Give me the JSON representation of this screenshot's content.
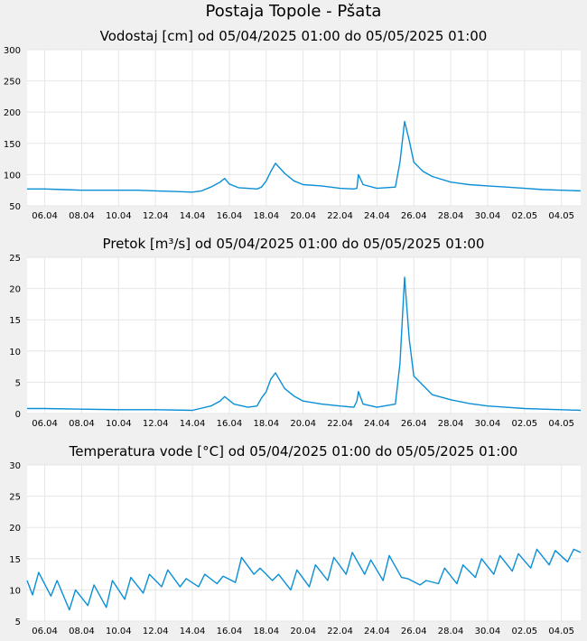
{
  "page": {
    "title": "Postaja Topole - Pšata",
    "line_color": "#0a8fd6",
    "grid_color": "#e6e6e6"
  },
  "chart_data": [
    {
      "type": "line",
      "title": "Vodostaj [cm] od 05/04/2025 01:00 do 05/05/2025 01:00",
      "x_start": "2025-04-05T01:00",
      "x_end": "2025-05-05T01:00",
      "ylim": [
        50,
        300
      ],
      "yticks": [
        "50",
        "100",
        "150",
        "200",
        "250",
        "300"
      ],
      "xticks": [
        "06.04",
        "08.04",
        "10.04",
        "12.04",
        "14.04",
        "16.04",
        "18.04",
        "20.04",
        "22.04",
        "24.04",
        "26.04",
        "28.04",
        "30.04",
        "02.05",
        "04.05"
      ],
      "grid": true,
      "series": [
        {
          "x": [
            "2025-04-05T01:00",
            "2025-04-06T00:00",
            "2025-04-07T00:00",
            "2025-04-08T00:00",
            "2025-04-09T00:00",
            "2025-04-10T00:00",
            "2025-04-11T00:00",
            "2025-04-12T00:00",
            "2025-04-13T00:00",
            "2025-04-14T00:00",
            "2025-04-14T12:00",
            "2025-04-15T00:00",
            "2025-04-15T12:00",
            "2025-04-15T18:00",
            "2025-04-16T00:00",
            "2025-04-16T12:00",
            "2025-04-17T00:00",
            "2025-04-17T12:00",
            "2025-04-17T18:00",
            "2025-04-18T00:00",
            "2025-04-18T06:00",
            "2025-04-18T12:00",
            "2025-04-19T00:00",
            "2025-04-19T12:00",
            "2025-04-20T00:00",
            "2025-04-21T00:00",
            "2025-04-22T00:00",
            "2025-04-22T18:00",
            "2025-04-22T22:00",
            "2025-04-23T00:00",
            "2025-04-23T06:00",
            "2025-04-24T00:00",
            "2025-04-25T00:00",
            "2025-04-25T06:00",
            "2025-04-25T12:00",
            "2025-04-25T18:00",
            "2025-04-26T00:00",
            "2025-04-26T12:00",
            "2025-04-27T00:00",
            "2025-04-28T00:00",
            "2025-04-29T00:00",
            "2025-04-30T00:00",
            "2025-05-01T00:00",
            "2025-05-02T00:00",
            "2025-05-03T00:00",
            "2025-05-04T00:00",
            "2025-05-05T01:00"
          ],
          "y": [
            77,
            77,
            76,
            75,
            75,
            75,
            75,
            74,
            73,
            72,
            74,
            80,
            88,
            94,
            85,
            79,
            78,
            77,
            80,
            90,
            105,
            118,
            102,
            90,
            84,
            82,
            78,
            77,
            78,
            100,
            84,
            78,
            80,
            120,
            185,
            155,
            120,
            105,
            97,
            88,
            84,
            82,
            80,
            78,
            76,
            75,
            74
          ]
        }
      ]
    },
    {
      "type": "line",
      "title": "Pretok [m³/s] od 05/04/2025 01:00 do 05/05/2025 01:00",
      "x_start": "2025-04-05T01:00",
      "x_end": "2025-05-05T01:00",
      "ylim": [
        0,
        25
      ],
      "yticks": [
        "0",
        "5",
        "10",
        "15",
        "20",
        "25"
      ],
      "xticks": [
        "06.04",
        "08.04",
        "10.04",
        "12.04",
        "14.04",
        "16.04",
        "18.04",
        "20.04",
        "22.04",
        "24.04",
        "26.04",
        "28.04",
        "30.04",
        "02.05",
        "04.05"
      ],
      "grid": true,
      "series": [
        {
          "x": [
            "2025-04-05T01:00",
            "2025-04-06T00:00",
            "2025-04-08T00:00",
            "2025-04-10T00:00",
            "2025-04-12T00:00",
            "2025-04-14T00:00",
            "2025-04-15T00:00",
            "2025-04-15T12:00",
            "2025-04-15T18:00",
            "2025-04-16T06:00",
            "2025-04-17T00:00",
            "2025-04-17T12:00",
            "2025-04-17T18:00",
            "2025-04-18T00:00",
            "2025-04-18T06:00",
            "2025-04-18T12:00",
            "2025-04-19T00:00",
            "2025-04-19T12:00",
            "2025-04-20T00:00",
            "2025-04-21T00:00",
            "2025-04-22T00:00",
            "2025-04-22T18:00",
            "2025-04-22T22:00",
            "2025-04-23T00:00",
            "2025-04-23T06:00",
            "2025-04-24T00:00",
            "2025-04-25T00:00",
            "2025-04-25T06:00",
            "2025-04-25T12:00",
            "2025-04-25T18:00",
            "2025-04-26T00:00",
            "2025-04-26T12:00",
            "2025-04-27T00:00",
            "2025-04-28T00:00",
            "2025-04-29T00:00",
            "2025-04-30T00:00",
            "2025-05-01T00:00",
            "2025-05-02T00:00",
            "2025-05-03T00:00",
            "2025-05-04T00:00",
            "2025-05-05T01:00"
          ],
          "y": [
            0.8,
            0.8,
            0.7,
            0.6,
            0.6,
            0.5,
            1.2,
            2.0,
            2.7,
            1.5,
            1.0,
            1.2,
            2.5,
            3.5,
            5.5,
            6.5,
            4.0,
            2.8,
            2.0,
            1.5,
            1.2,
            1.0,
            2.0,
            3.5,
            1.5,
            1.0,
            1.5,
            8.0,
            21.8,
            12.0,
            6.0,
            4.5,
            3.0,
            2.2,
            1.6,
            1.2,
            1.0,
            0.8,
            0.7,
            0.6,
            0.5
          ]
        }
      ]
    },
    {
      "type": "line",
      "title": "Temperatura vode [°C] od 05/04/2025 01:00 do 05/05/2025 01:00",
      "x_start": "2025-04-05T01:00",
      "x_end": "2025-05-05T01:00",
      "ylim": [
        5,
        30
      ],
      "yticks": [
        "5",
        "10",
        "15",
        "20",
        "25",
        "30"
      ],
      "xticks": [
        "06.04",
        "08.04",
        "10.04",
        "12.04",
        "14.04",
        "16.04",
        "18.04",
        "20.04",
        "22.04",
        "24.04",
        "26.04",
        "28.04",
        "30.04",
        "02.05",
        "04.05"
      ],
      "grid": true,
      "series": [
        {
          "x": [
            "2025-04-05T01:00",
            "2025-04-05T08:00",
            "2025-04-05T16:00",
            "2025-04-06T08:00",
            "2025-04-06T16:00",
            "2025-04-07T08:00",
            "2025-04-07T16:00",
            "2025-04-08T08:00",
            "2025-04-08T16:00",
            "2025-04-09T08:00",
            "2025-04-09T16:00",
            "2025-04-10T08:00",
            "2025-04-10T16:00",
            "2025-04-11T08:00",
            "2025-04-11T16:00",
            "2025-04-12T08:00",
            "2025-04-12T16:00",
            "2025-04-13T08:00",
            "2025-04-13T16:00",
            "2025-04-14T08:00",
            "2025-04-14T16:00",
            "2025-04-15T08:00",
            "2025-04-15T16:00",
            "2025-04-16T08:00",
            "2025-04-16T16:00",
            "2025-04-17T08:00",
            "2025-04-17T16:00",
            "2025-04-18T08:00",
            "2025-04-18T16:00",
            "2025-04-19T08:00",
            "2025-04-19T16:00",
            "2025-04-20T08:00",
            "2025-04-20T16:00",
            "2025-04-21T08:00",
            "2025-04-21T16:00",
            "2025-04-22T08:00",
            "2025-04-22T16:00",
            "2025-04-23T08:00",
            "2025-04-23T16:00",
            "2025-04-24T08:00",
            "2025-04-24T16:00",
            "2025-04-25T08:00",
            "2025-04-25T16:00",
            "2025-04-26T08:00",
            "2025-04-26T16:00",
            "2025-04-27T08:00",
            "2025-04-27T16:00",
            "2025-04-28T08:00",
            "2025-04-28T16:00",
            "2025-04-29T08:00",
            "2025-04-29T16:00",
            "2025-04-30T08:00",
            "2025-04-30T16:00",
            "2025-05-01T08:00",
            "2025-05-01T16:00",
            "2025-05-02T08:00",
            "2025-05-02T16:00",
            "2025-05-03T08:00",
            "2025-05-03T16:00",
            "2025-05-04T08:00",
            "2025-05-04T16:00",
            "2025-05-05T01:00"
          ],
          "y": [
            11.5,
            9.2,
            12.8,
            9.0,
            11.5,
            6.8,
            10.0,
            7.5,
            10.8,
            7.2,
            11.5,
            8.5,
            12.0,
            9.5,
            12.5,
            10.5,
            13.2,
            10.5,
            11.8,
            10.5,
            12.5,
            11.0,
            12.2,
            11.2,
            15.2,
            12.5,
            13.5,
            11.5,
            12.5,
            10.0,
            13.2,
            10.5,
            14.0,
            11.5,
            15.2,
            12.5,
            16.0,
            12.5,
            14.8,
            11.5,
            15.5,
            12.0,
            11.8,
            10.8,
            11.5,
            11.0,
            13.5,
            11.0,
            14.0,
            12.0,
            15.0,
            12.5,
            15.5,
            13.0,
            15.8,
            13.5,
            16.5,
            14.0,
            16.3,
            14.5,
            16.5,
            16.0
          ]
        }
      ]
    }
  ]
}
